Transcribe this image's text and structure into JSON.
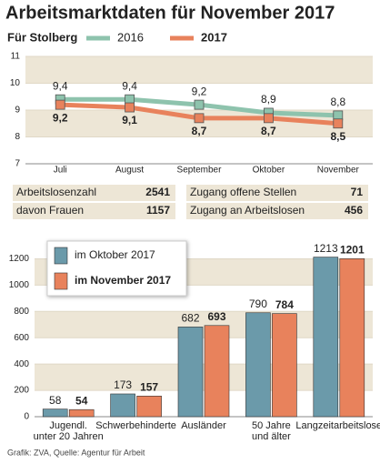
{
  "chart_data": [
    {
      "type": "line",
      "title": "Arbeitsmarktdaten für November 2017",
      "subtitle": "Für Stolberg",
      "categories": [
        "Juli",
        "August",
        "September",
        "Oktober",
        "November"
      ],
      "series": [
        {
          "name": "2016",
          "color": "#8ec3ad",
          "bold": false,
          "values": [
            9.4,
            9.4,
            9.2,
            8.9,
            8.8
          ],
          "value_labels": [
            "9,4",
            "9,4",
            "9,2",
            "8,9",
            "8,8"
          ]
        },
        {
          "name": "2017",
          "color": "#e8825c",
          "bold": true,
          "values": [
            9.2,
            9.1,
            8.7,
            8.7,
            8.5
          ],
          "value_labels": [
            "9,2",
            "9,1",
            "8,7",
            "8,7",
            "8,5"
          ]
        }
      ],
      "ylim": [
        7,
        11
      ],
      "yticks": [
        7,
        8,
        9,
        10,
        11
      ],
      "banded": true
    },
    {
      "type": "bar",
      "categories": [
        "Jugendl.\nunter 20 Jahren",
        "Schwerbehinderte",
        "Ausländer",
        "50 Jahre\nund älter",
        "Langzeitarbeitslose"
      ],
      "series": [
        {
          "name": "im Oktober 2017",
          "color": "#6b9aaa",
          "bold": false,
          "values": [
            58,
            173,
            682,
            790,
            1213
          ]
        },
        {
          "name": "im November 2017",
          "color": "#e8825c",
          "bold": true,
          "values": [
            54,
            157,
            693,
            784,
            1201
          ]
        }
      ],
      "ylim": [
        0,
        1300
      ],
      "yticks": [
        0,
        200,
        400,
        600,
        800,
        1000,
        1200
      ],
      "banded": true,
      "legend": "top-left"
    }
  ],
  "table": {
    "rows": [
      [
        "Arbeitslosenzahl",
        2541
      ],
      [
        "davon Frauen",
        1157
      ],
      [
        "Zugang offene Stellen",
        71
      ],
      [
        "Zugang an Arbeitslosen",
        456
      ]
    ]
  },
  "source": "Grafik: ZVA, Quelle: Agentur für Arbeit"
}
